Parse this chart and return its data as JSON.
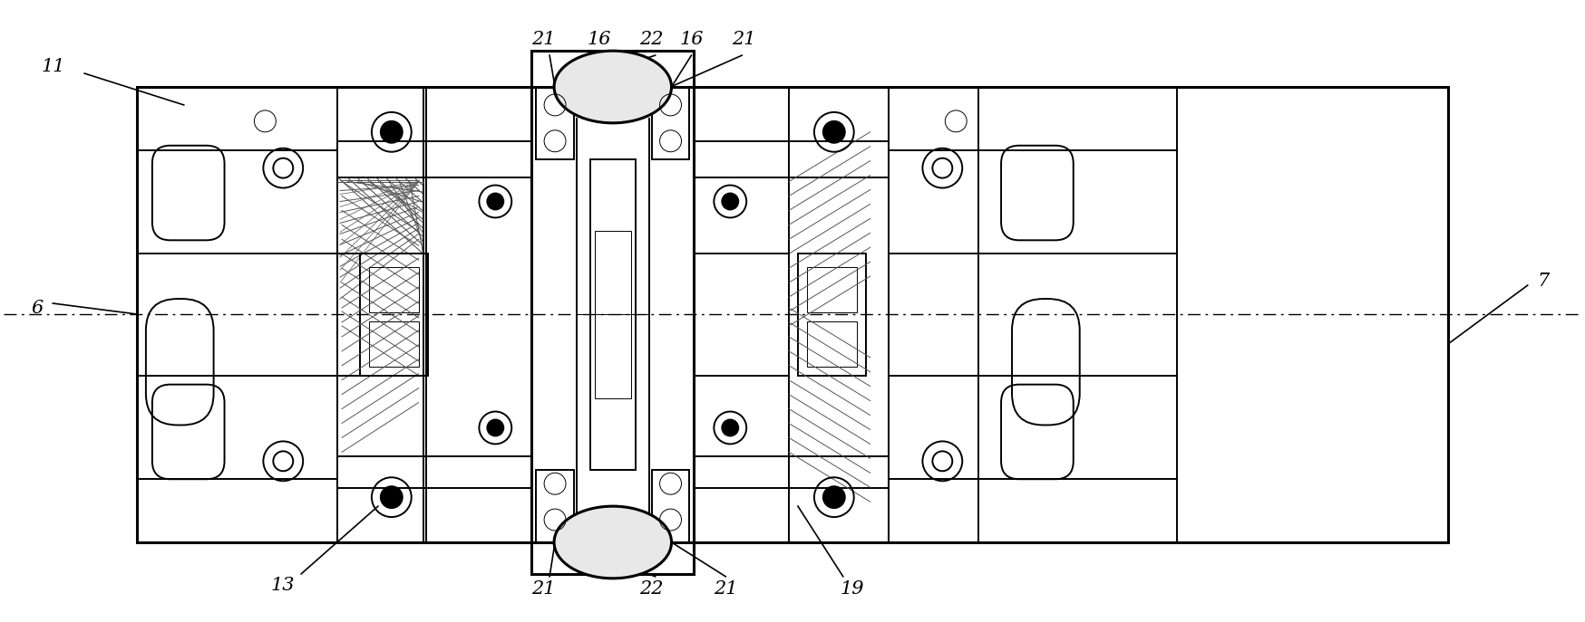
{
  "fig_width": 17.48,
  "fig_height": 6.87,
  "bg_color": "#ffffff",
  "lc": "#000000",
  "lw": 1.4,
  "lw2": 2.2,
  "lw_thin": 0.7,
  "fs": 15
}
